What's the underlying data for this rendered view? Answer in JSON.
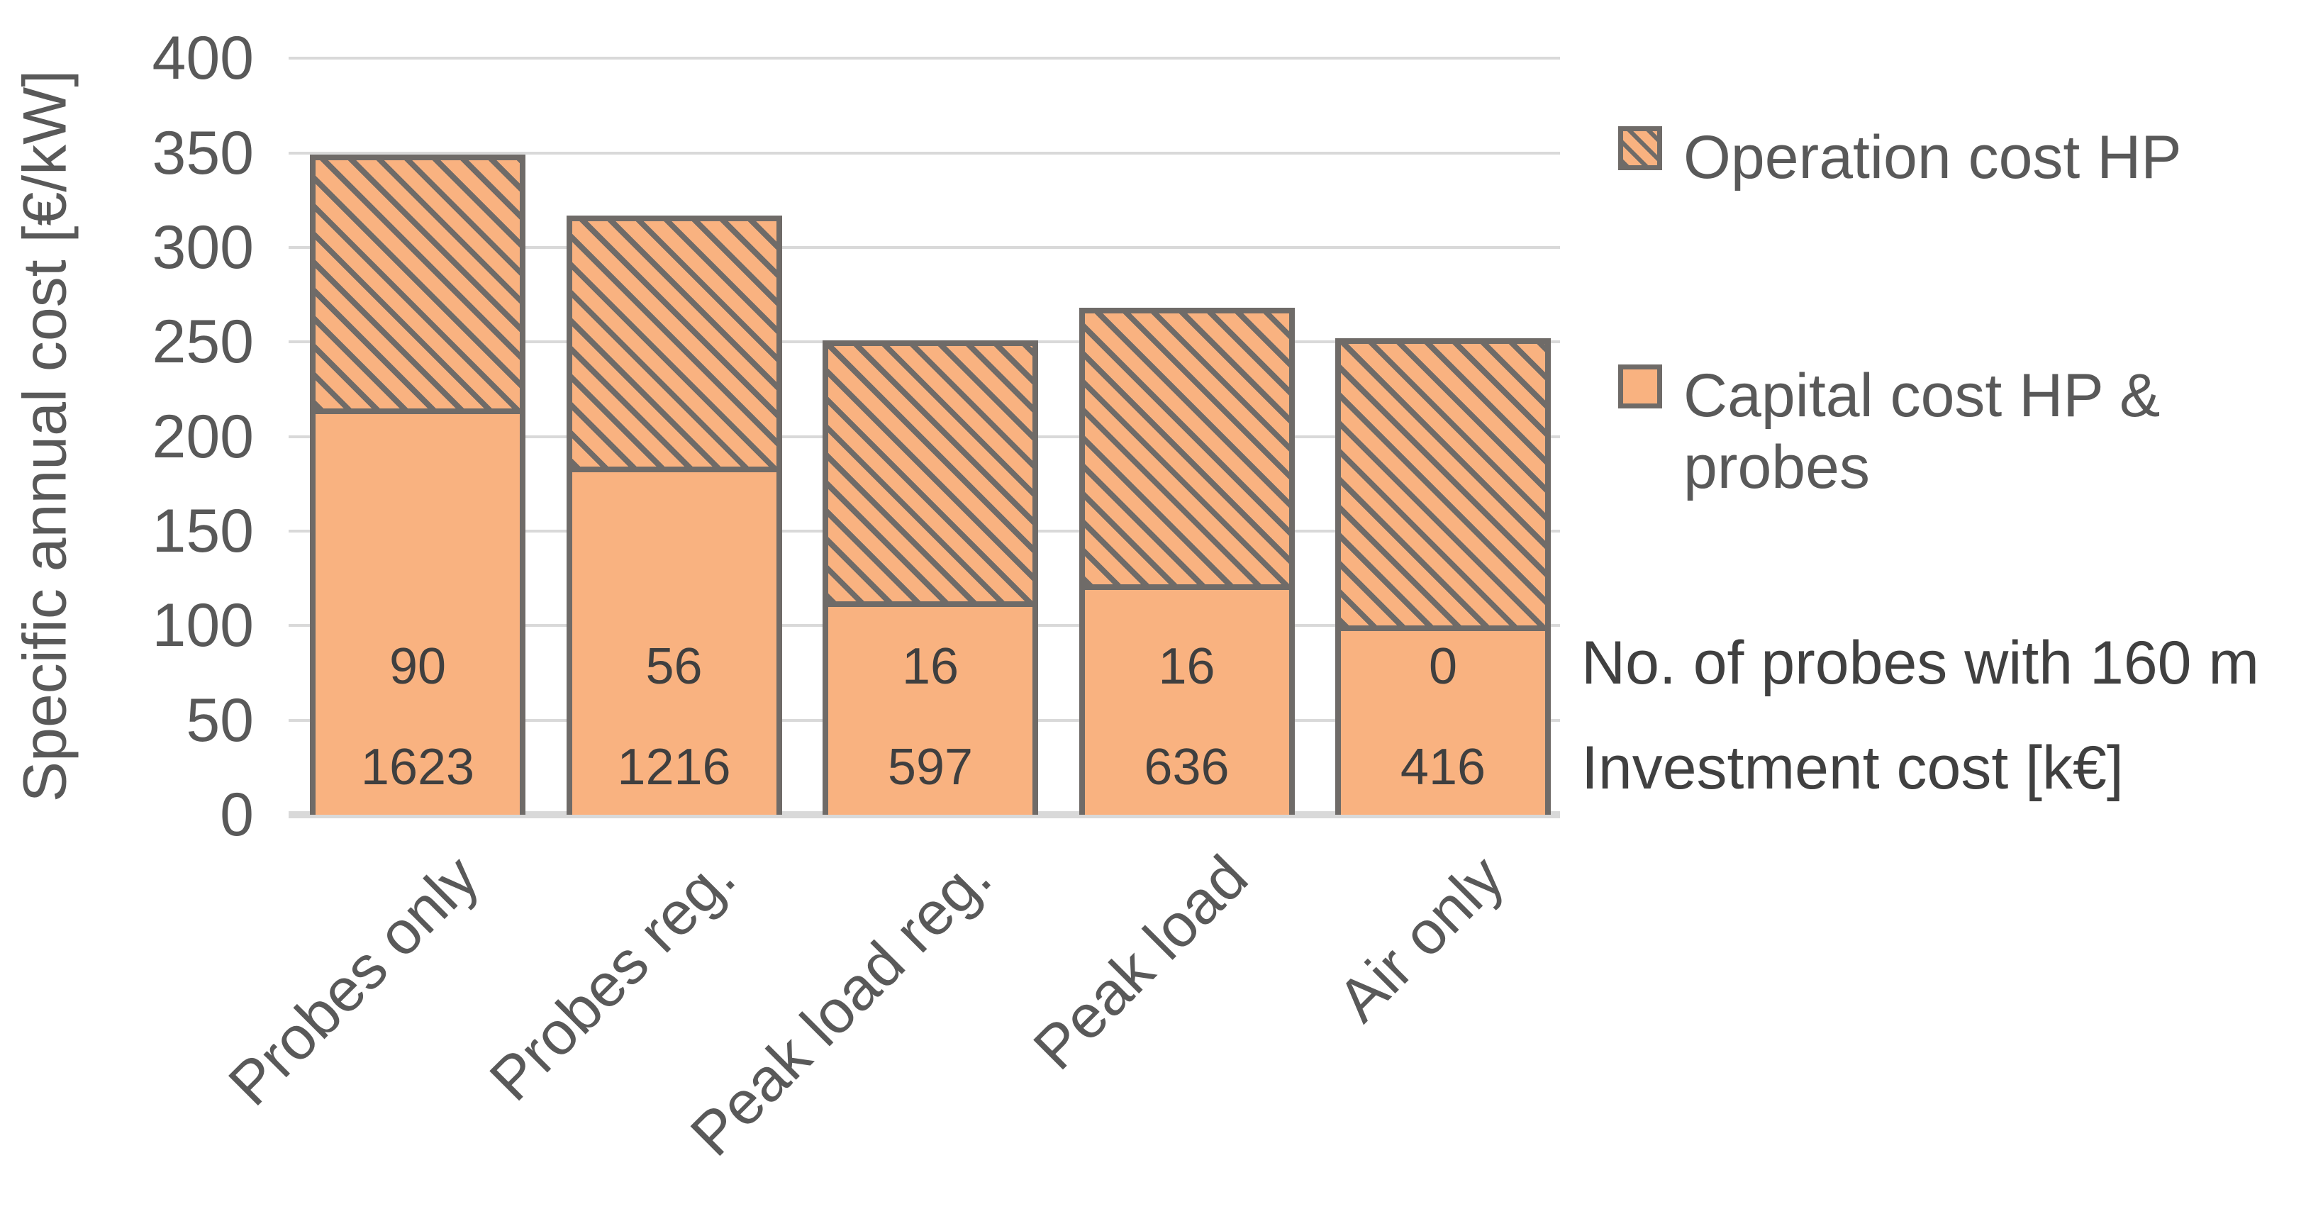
{
  "chart_data": {
    "type": "bar",
    "stacked": true,
    "title": "",
    "ylabel": "Specific annual cost [€/kW]",
    "xlabel": "",
    "ylim": [
      0,
      400
    ],
    "ytick_step": 50,
    "grid": true,
    "legend_position": "right",
    "categories": [
      "Probes only",
      "Probes reg.",
      "Peak load reg.",
      "Peak load",
      "Air only"
    ],
    "series": [
      {
        "name": "Capital cost HP & probes",
        "style": "solid",
        "values": [
          215,
          184,
          113,
          122,
          100
        ]
      },
      {
        "name": "Operation cost HP",
        "style": "hatched",
        "values": [
          134,
          133,
          138,
          146,
          152
        ]
      }
    ],
    "stack_totals": [
      349,
      317,
      251,
      268,
      252
    ],
    "bar_labels": {
      "probes_count": [
        "90",
        "56",
        "16",
        "16",
        "0"
      ],
      "investment_cost": [
        "1623",
        "1216",
        "597",
        "636",
        "416"
      ]
    }
  },
  "legend": {
    "items": [
      {
        "label": "Operation cost HP",
        "swatch": "hatched-square-icon"
      },
      {
        "label": "Capital cost HP & probes",
        "swatch": "solid-square-icon"
      }
    ]
  },
  "annotations": {
    "probes_line": "No. of probes with 160 m",
    "investment_line": "Investment cost [k€]"
  },
  "colors": {
    "bar_fill": "#f9b280",
    "bar_outline": "#6f6b68",
    "gridline": "#d9d9d9",
    "axis_text": "#595959",
    "bar_label_text": "#3f3f3f",
    "background": "#ffffff"
  }
}
